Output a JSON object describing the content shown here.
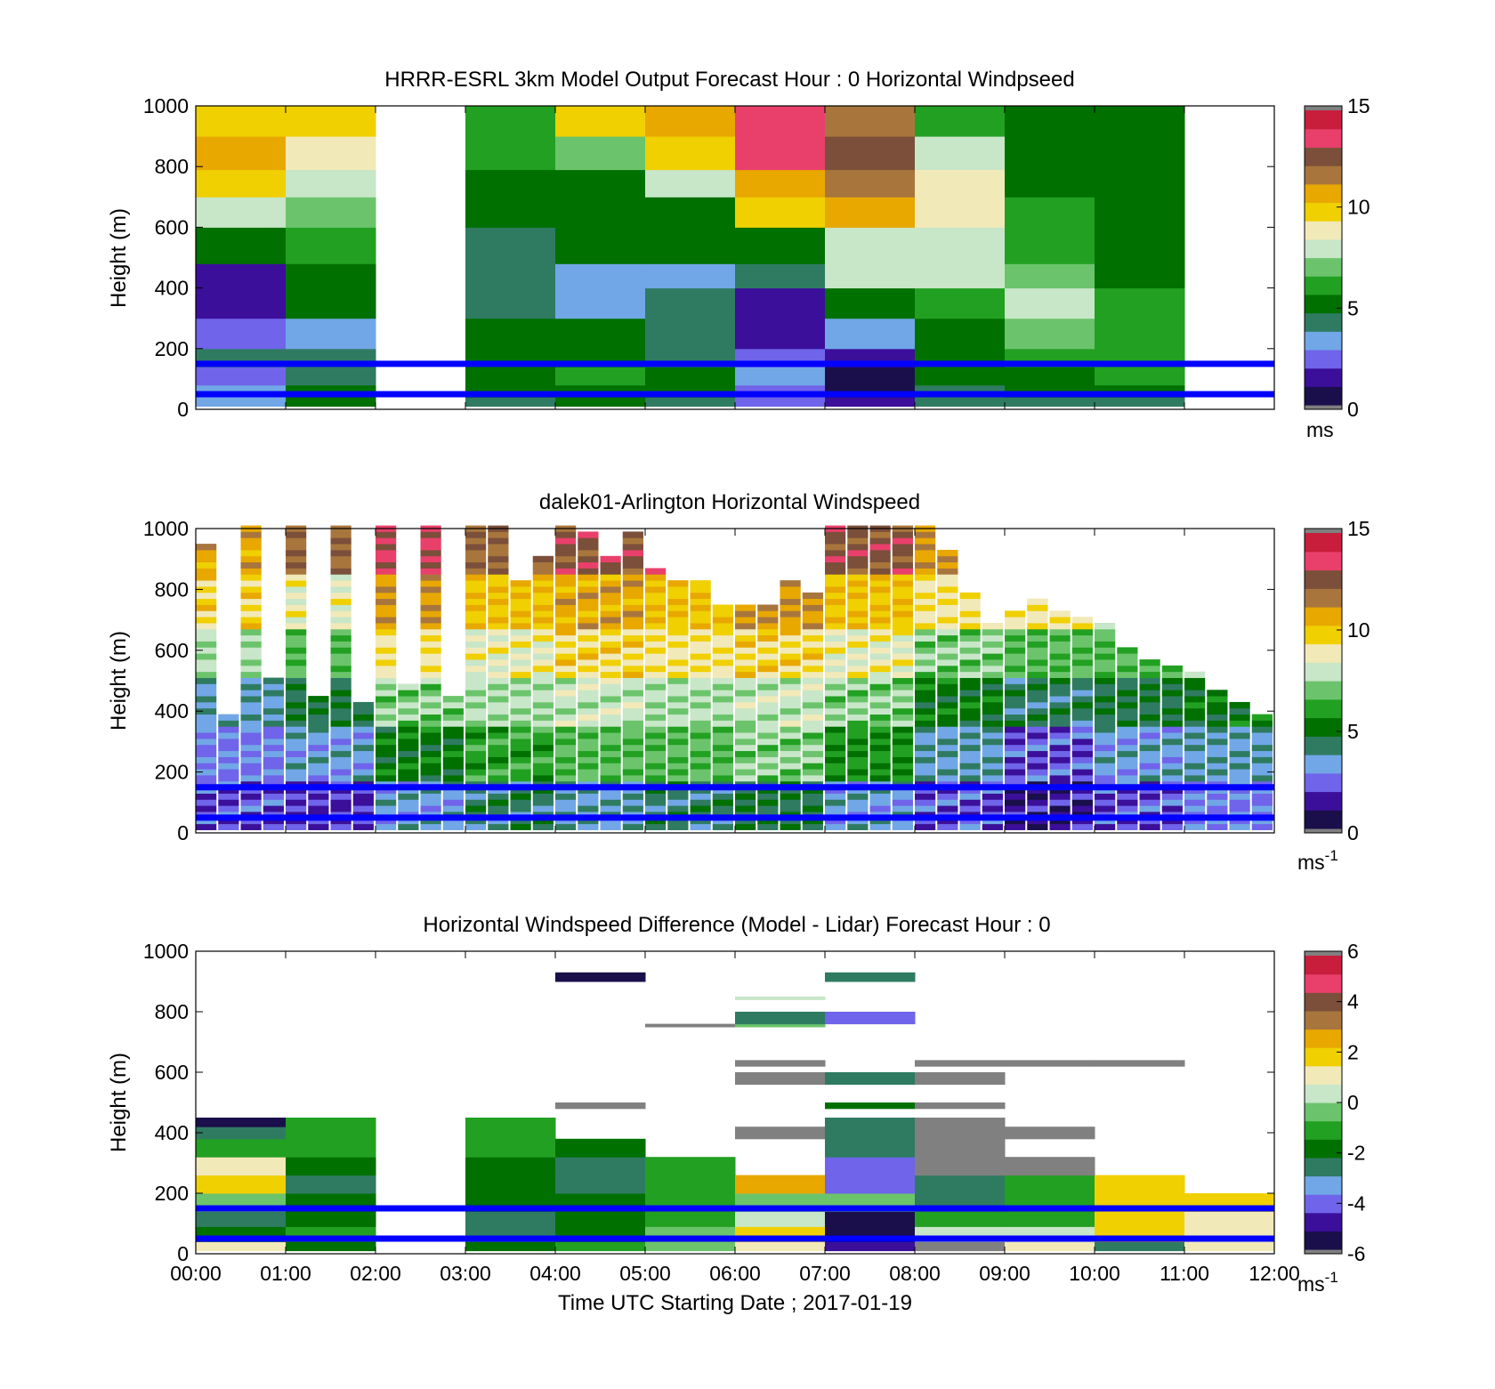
{
  "colors": {
    "speed_colormap": [
      "#1a0f4a",
      "#3b0f9a",
      "#6f64ea",
      "#71a7e6",
      "#2e7b62",
      "#007000",
      "#22a022",
      "#6bc46b",
      "#c8e6c8",
      "#f2e9b8",
      "#f0d000",
      "#e8a800",
      "#a8763c",
      "#7b4f3a",
      "#e8406a",
      "#c81e3c"
    ],
    "diff_colormap": [
      "#1a0f4a",
      "#3b0f9a",
      "#6f64ea",
      "#71a7e6",
      "#2e7b62",
      "#007000",
      "#22a022",
      "#6bc46b",
      "#c8e6c8",
      "#f2e9b8",
      "#f0d000",
      "#e8a800",
      "#a8763c",
      "#7b4f3a",
      "#e8406a",
      "#c81e3c"
    ],
    "out_of_range": "#808080",
    "reference_line": "#0000ff"
  },
  "chart_data": [
    {
      "type": "heatmap",
      "title": "HRRR-ESRL 3km Model Output   Forecast Hour : 0 Horizontal Windpseed",
      "ylabel": "Height (m)",
      "xlabel": "",
      "ylim": [
        0,
        1000
      ],
      "xlim": [
        "00:00",
        "12:00"
      ],
      "yticks": [
        "0",
        "200",
        "400",
        "600",
        "800",
        "1000"
      ],
      "colorbar": {
        "range": [
          0,
          15
        ],
        "ticks": [
          "0",
          "5",
          "10",
          "15"
        ],
        "label": "ms"
      },
      "reference_lines_m": [
        150,
        50
      ],
      "cell_times": [
        "00:00",
        "01:00",
        "02:00",
        "03:00",
        "04:00",
        "05:00",
        "06:00",
        "07:00",
        "08:00",
        "09:00",
        "10:00",
        "11:00"
      ],
      "levels": [
        [
          10,
          70
        ],
        [
          40,
          120
        ],
        [
          80,
          180
        ],
        [
          140,
          260
        ],
        [
          200,
          320
        ],
        [
          300,
          420
        ],
        [
          400,
          500
        ],
        [
          480,
          620
        ],
        [
          600,
          710
        ],
        [
          700,
          820
        ],
        [
          790,
          900
        ],
        [
          900,
          1000
        ]
      ],
      "values": [
        [
          3.0,
          5.0,
          null,
          4.5,
          5.0,
          4.5,
          2.0,
          1.0,
          4.0,
          4.5,
          4.5,
          null
        ],
        [
          3.2,
          5.0,
          null,
          5.0,
          5.5,
          5.0,
          2.5,
          0.8,
          4.5,
          5.0,
          5.0,
          null
        ],
        [
          2.8,
          4.5,
          null,
          5.0,
          6.0,
          5.0,
          3.0,
          0.5,
          5.0,
          5.5,
          6.0,
          null
        ],
        [
          4.0,
          4.5,
          null,
          5.0,
          5.5,
          4.5,
          2.2,
          1.5,
          5.0,
          6.0,
          6.0,
          null
        ],
        [
          2.5,
          3.2,
          null,
          4.8,
          5.0,
          4.5,
          1.5,
          3.0,
          5.5,
          7.0,
          6.0,
          null
        ],
        [
          1.8,
          4.8,
          null,
          4.5,
          3.2,
          4.5,
          1.8,
          5.5,
          6.5,
          7.5,
          6.0,
          null
        ],
        [
          1.5,
          5.0,
          null,
          4.5,
          3.0,
          3.5,
          4.5,
          7.5,
          7.5,
          7.0,
          5.5,
          null
        ],
        [
          5.0,
          5.8,
          null,
          4.5,
          4.8,
          5.5,
          5.0,
          7.8,
          7.8,
          6.5,
          5.0,
          null
        ],
        [
          7.8,
          6.8,
          null,
          5.0,
          5.0,
          5.5,
          9.5,
          10.5,
          9.0,
          6.0,
          5.0,
          null
        ],
        [
          9.5,
          7.5,
          null,
          5.5,
          5.5,
          7.8,
          11.0,
          11.5,
          9.0,
          5.5,
          5.0,
          null
        ],
        [
          10.5,
          8.5,
          null,
          6.0,
          7.0,
          10.0,
          13.5,
          12.5,
          8.0,
          5.0,
          5.0,
          null
        ],
        [
          10.0,
          9.5,
          null,
          6.5,
          9.5,
          11.0,
          13.5,
          12.0,
          6.5,
          5.0,
          5.0,
          null
        ]
      ]
    },
    {
      "type": "heatmap",
      "title": "dalek01-Arlington  Horizontal Windspeed",
      "ylabel": "Height (m)",
      "xlabel": "",
      "ylim": [
        0,
        1000
      ],
      "xlim": [
        "00:00",
        "12:00"
      ],
      "yticks": [
        "0",
        "200",
        "400",
        "600",
        "800",
        "1000"
      ],
      "colorbar": {
        "range": [
          0,
          15
        ],
        "ticks": [
          "0",
          "5",
          "10",
          "15"
        ],
        "label": "ms",
        "label_exp": "-1"
      },
      "reference_lines_m": [
        150,
        50
      ],
      "profile_interval_min": 15,
      "top_of_data_m": [
        950,
        390,
        1000,
        500,
        1000,
        450,
        1000,
        420,
        1000,
        480,
        1000,
        440,
        1000,
        1000,
        820,
        900,
        1000,
        980,
        900,
        980,
        860,
        820,
        820,
        750,
        740,
        750,
        820,
        780,
        1000,
        1000,
        1000,
        1000,
        1000,
        920,
        780,
        680,
        720,
        760,
        720,
        700,
        680,
        600,
        560,
        540,
        520,
        460,
        420,
        380
      ],
      "profiles_ms_by_height_band": [
        [
          2.0,
          2.5,
          3.5,
          7.5,
          9.5,
          10.5
        ],
        [
          1.5,
          3.0,
          4.5,
          6.5,
          8.5,
          12.0
        ],
        [
          3.0,
          5.0,
          7.0,
          9.0,
          11.0,
          13.0
        ],
        [
          4.0,
          6.0,
          7.5,
          8.5,
          10.0,
          12.0
        ],
        [
          3.5,
          6.5,
          7.8,
          9.5,
          10.5,
          12.5
        ],
        [
          4.0,
          6.5,
          7.5,
          9.0,
          10.0,
          13.0
        ],
        [
          4.5,
          7.0,
          7.8,
          9.5,
          11.0,
          13.5
        ],
        [
          3.0,
          5.5,
          7.0,
          8.5,
          10.0,
          12.5
        ],
        [
          2.0,
          3.5,
          5.0,
          7.0,
          9.0,
          11.0
        ],
        [
          1.0,
          2.0,
          4.0,
          6.5,
          9.0,
          11.5
        ],
        [
          2.0,
          3.0,
          4.5,
          6.5,
          8.5,
          10.5
        ],
        [
          2.5,
          3.5,
          5.0,
          7.0,
          9.0,
          11.0
        ]
      ]
    },
    {
      "type": "heatmap",
      "title": "Horizontal Windspeed Difference (Model - Lidar) Forecast Hour : 0",
      "ylabel": "Height (m)",
      "xlabel": "Time UTC  Starting Date ; 2017-01-19",
      "ylim": [
        0,
        1000
      ],
      "xlim": [
        "00:00",
        "12:00"
      ],
      "yticks": [
        "0",
        "200",
        "400",
        "600",
        "800",
        "1000"
      ],
      "xticks": [
        "00:00",
        "01:00",
        "02:00",
        "03:00",
        "04:00",
        "05:00",
        "06:00",
        "07:00",
        "08:00",
        "09:00",
        "10:00",
        "11:00",
        "12:00"
      ],
      "colorbar": {
        "range": [
          -6,
          6
        ],
        "ticks": [
          "-6",
          "-4",
          "-2",
          "0",
          "2",
          "4",
          "6"
        ],
        "label": "ms",
        "label_exp": "-1"
      },
      "reference_lines_m": [
        150,
        50
      ],
      "cell_times": [
        "00:00",
        "01:00",
        "02:00",
        "03:00",
        "04:00",
        "05:00",
        "06:00",
        "07:00",
        "08:00",
        "09:00",
        "10:00",
        "11:00"
      ],
      "levels": [
        [
          10,
          40
        ],
        [
          40,
          90
        ],
        [
          90,
          140
        ],
        [
          140,
          200
        ],
        [
          200,
          260
        ],
        [
          260,
          320
        ],
        [
          320,
          380
        ],
        [
          380,
          420
        ],
        [
          420,
          450
        ],
        [
          480,
          500
        ],
        [
          560,
          600
        ],
        [
          620,
          640
        ],
        [
          750,
          760
        ],
        [
          760,
          800
        ],
        [
          840,
          850
        ],
        [
          900,
          930
        ]
      ],
      "values": [
        [
          1.0,
          -2.0,
          null,
          -2.0,
          -1.5,
          -0.5,
          1.0,
          -5.0,
          -6.5,
          1.0,
          -2.5,
          1.0
        ],
        [
          -2.0,
          -1.5,
          null,
          -2.5,
          -2.0,
          -0.3,
          1.5,
          -6.0,
          0.5,
          0.0,
          1.5,
          1.0
        ],
        [
          -2.5,
          -2.0,
          null,
          -2.5,
          -2.0,
          -0.8,
          0.5,
          -6.0,
          -1.0,
          -1.0,
          1.5,
          1.0
        ],
        [
          -0.5,
          -2.2,
          null,
          -2.2,
          -2.2,
          -1.2,
          -0.2,
          -0.1,
          -2.5,
          -1.0,
          1.5,
          1.5
        ],
        [
          1.5,
          -2.5,
          null,
          -2.0,
          -2.5,
          -1.5,
          2.5,
          -4.0,
          -2.5,
          -1.5,
          2.0,
          null
        ],
        [
          1.0,
          -2.2,
          null,
          -1.8,
          -2.5,
          -1.5,
          null,
          -4.5,
          -7.0,
          -7.0,
          null,
          null
        ],
        [
          -1.0,
          -1.5,
          null,
          -1.5,
          -2.0,
          null,
          null,
          -3.0,
          -7.0,
          null,
          null,
          null
        ],
        [
          -3.0,
          -1.0,
          null,
          -1.2,
          null,
          null,
          -7.0,
          -2.5,
          -7.0,
          -7.0,
          null,
          null
        ],
        [
          -5.5,
          -1.0,
          null,
          -1.0,
          null,
          null,
          null,
          -2.5,
          -7.0,
          null,
          null,
          null
        ],
        [
          null,
          null,
          null,
          null,
          -7.0,
          null,
          null,
          -2.0,
          -7.0,
          null,
          null,
          null
        ],
        [
          null,
          null,
          null,
          null,
          null,
          null,
          -7.0,
          -3.0,
          -7.0,
          null,
          null,
          null
        ],
        [
          null,
          null,
          null,
          null,
          null,
          null,
          -7.0,
          null,
          -7.0,
          -7.0,
          -7.0,
          null
        ],
        [
          null,
          null,
          null,
          null,
          null,
          -7.0,
          -0.2,
          null,
          null,
          null,
          null,
          null
        ],
        [
          null,
          null,
          null,
          null,
          null,
          null,
          -2.5,
          -4.5,
          null,
          null,
          null,
          null
        ],
        [
          null,
          null,
          null,
          null,
          null,
          null,
          0.3,
          null,
          null,
          null,
          null,
          null
        ],
        [
          null,
          null,
          null,
          null,
          -6.0,
          null,
          null,
          -2.5,
          null,
          null,
          null,
          null
        ]
      ]
    }
  ]
}
